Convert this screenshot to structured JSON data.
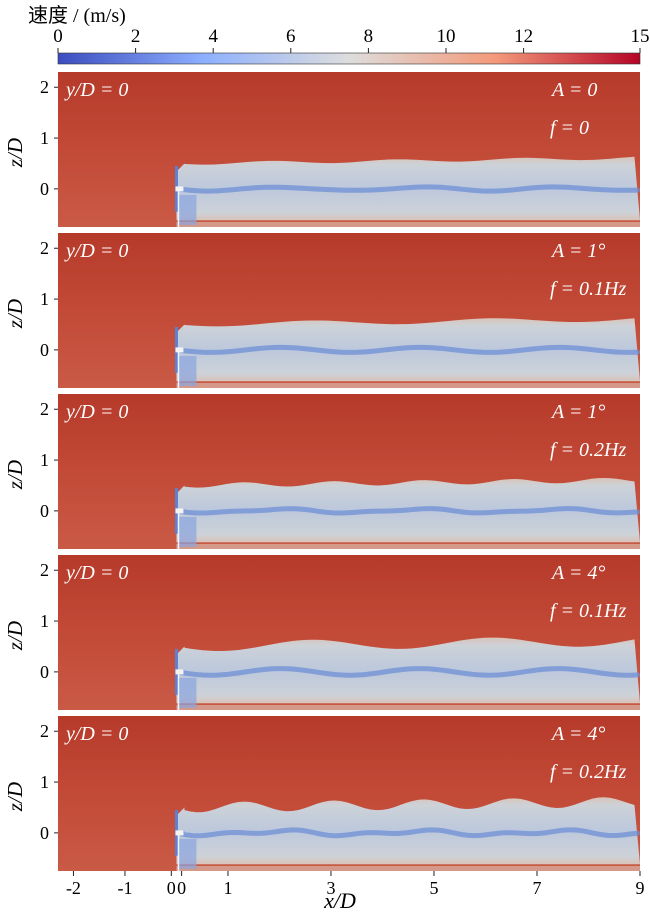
{
  "colorbar": {
    "title": "速度 / (m/s)",
    "ticks": [
      0,
      2,
      4,
      6,
      8,
      10,
      12,
      15
    ],
    "range": [
      0,
      15
    ],
    "colors": [
      "#3b4cc0",
      "#8db0fe",
      "#dddddd",
      "#f49a7b",
      "#b40426"
    ]
  },
  "axes": {
    "ylabel": "z/D",
    "xlabel": "x/D",
    "xticks": [
      "-2",
      "-1",
      "0",
      "0",
      "1",
      "3",
      "5",
      "7",
      "9"
    ],
    "yticks": [
      "2",
      "1",
      "0"
    ]
  },
  "panels": [
    {
      "slice": "y/D = 0",
      "A": "A = 0",
      "f": "f = 0"
    },
    {
      "slice": "y/D = 0",
      "A": "A = 1°",
      "f": "f = 0.1Hz"
    },
    {
      "slice": "y/D = 0",
      "A": "A = 1°",
      "f": "f = 0.2Hz"
    },
    {
      "slice": "y/D = 0",
      "A": "A = 4°",
      "f": "f = 0.1Hz"
    },
    {
      "slice": "y/D = 0",
      "A": "A = 4°",
      "f": "f = 0.2Hz"
    }
  ],
  "chart_data": {
    "type": "heatmap",
    "description_free": true,
    "xlim": [
      -2.3,
      9
    ],
    "ylim": [
      -0.75,
      2.3
    ],
    "colorbar_range": [
      0,
      15
    ],
    "freestream_speed": 14,
    "wake_core_speed": 7,
    "turbine_x": 0,
    "wake_top_z": 0.5,
    "wake_bottom_z": -0.5,
    "panels": [
      {
        "A_deg": 0,
        "f_hz": 0
      },
      {
        "A_deg": 1,
        "f_hz": 0.1
      },
      {
        "A_deg": 1,
        "f_hz": 0.2
      },
      {
        "A_deg": 4,
        "f_hz": 0.1
      },
      {
        "A_deg": 4,
        "f_hz": 0.2
      }
    ]
  }
}
